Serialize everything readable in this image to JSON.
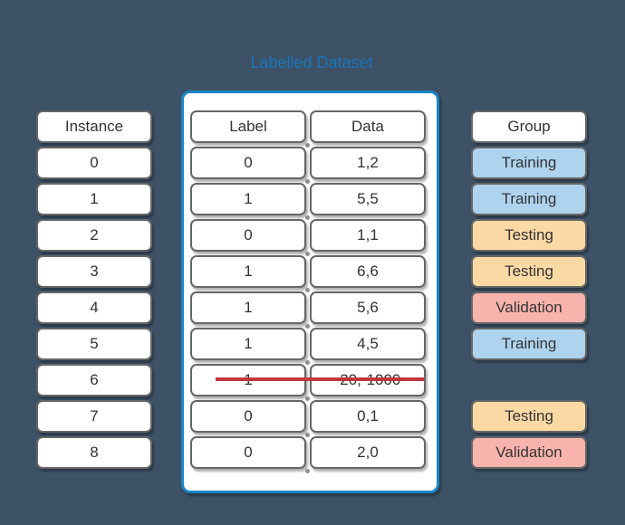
{
  "title": "Labelled Dataset",
  "colors": {
    "background": "#3d5266",
    "title_text": "#1a73b7",
    "container_border": "#1b85c8",
    "box_border": "#666666",
    "text": "#333333",
    "training_fill": "#aed3ee",
    "testing_fill": "#fbd9a5",
    "validation_fill": "#f8b4ac",
    "strikethrough": "#c4343c"
  },
  "instance_column": {
    "header": "Instance",
    "rows": [
      "0",
      "1",
      "2",
      "3",
      "4",
      "5",
      "6",
      "7",
      "8"
    ]
  },
  "dataset_table": {
    "label_column": {
      "header": "Label",
      "rows": [
        "0",
        "1",
        "0",
        "1",
        "1",
        "1",
        "1",
        "0",
        "0"
      ]
    },
    "data_column": {
      "header": "Data",
      "rows": [
        "1,2",
        "5,5",
        "1,1",
        "6,6",
        "5,6",
        "4,5",
        "-20,-1000",
        "0,1",
        "2,0"
      ]
    },
    "struck_row_index": 6
  },
  "group_column": {
    "header": "Group",
    "rows": [
      {
        "instance": 0,
        "label": "Training",
        "type": "training"
      },
      {
        "instance": 1,
        "label": "Training",
        "type": "training"
      },
      {
        "instance": 2,
        "label": "Testing",
        "type": "testing"
      },
      {
        "instance": 3,
        "label": "Testing",
        "type": "testing"
      },
      {
        "instance": 4,
        "label": "Validation",
        "type": "validation"
      },
      {
        "instance": 5,
        "label": "Training",
        "type": "training"
      },
      {
        "instance": 7,
        "label": "Testing",
        "type": "testing"
      },
      {
        "instance": 8,
        "label": "Validation",
        "type": "validation"
      }
    ]
  }
}
